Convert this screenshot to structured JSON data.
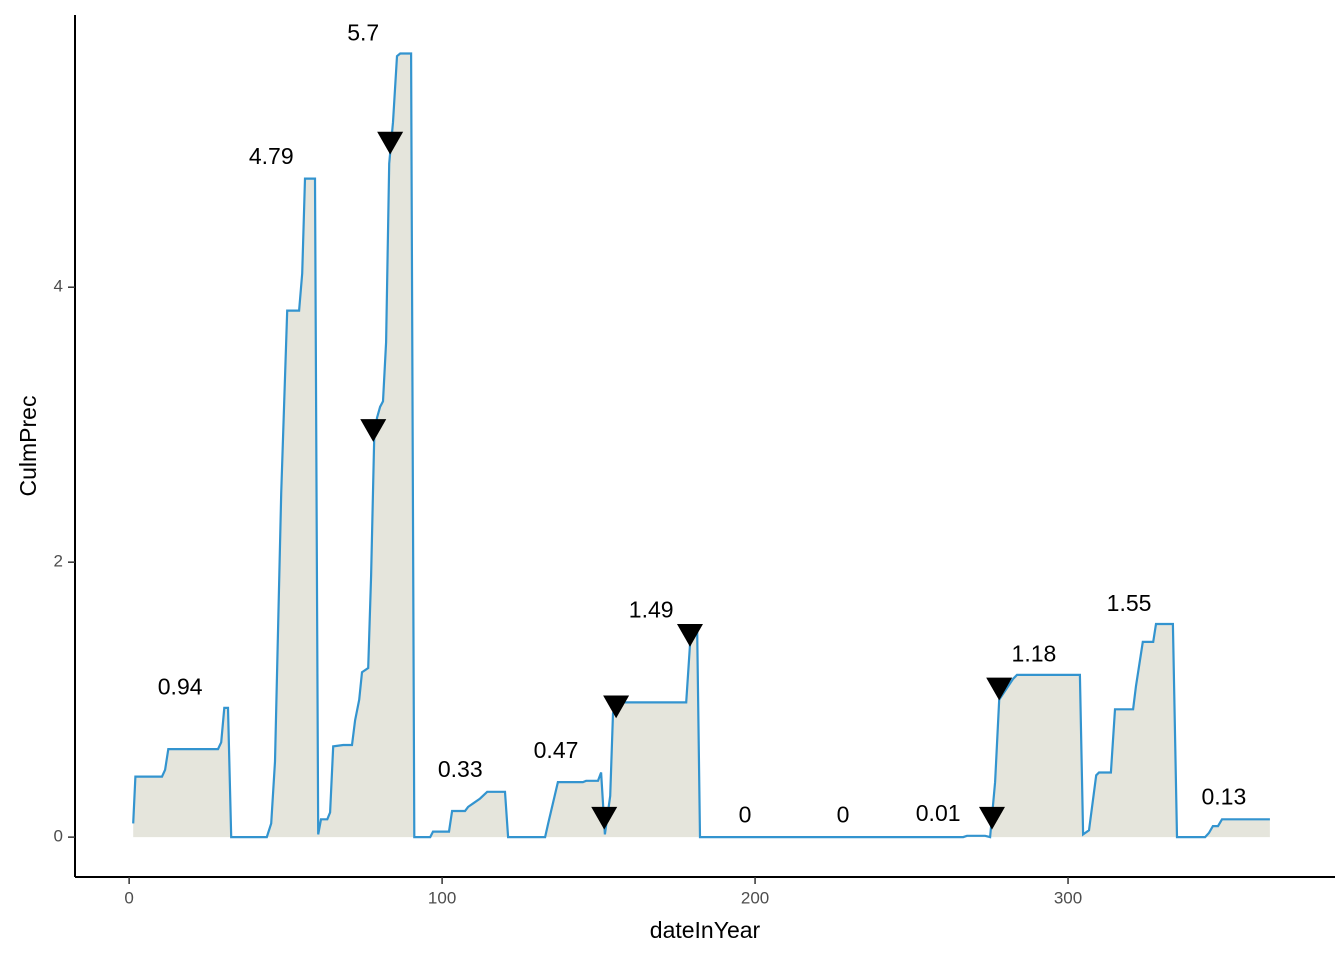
{
  "chart_data": {
    "type": "area-line",
    "xlabel": "dateInYear",
    "ylabel": "CulmPrec",
    "xlim": [
      -17.3,
      385.3
    ],
    "ylim": [
      -0.29,
      5.98
    ],
    "xticks": [
      0,
      100,
      200,
      300
    ],
    "yticks": [
      0,
      2,
      4
    ],
    "fill_color": "#e5e5dc",
    "series": [
      {
        "color": "#3394cf",
        "x": [
          1.3,
          2,
          10.5,
          11.5,
          12.5,
          28.4,
          29.4,
          30.4,
          31.6,
          32.6,
          44,
          45.4,
          46.6,
          48.6,
          50.5,
          54.3,
          55.3,
          56.2,
          59.4,
          60.4,
          61.3,
          63.3,
          64.2,
          65.2,
          68.4,
          71.2,
          72.2,
          73.5,
          74.4,
          76.4,
          77.3,
          78.3,
          79.2,
          80.2,
          81.1,
          82.1,
          83.1,
          84.3,
          85.6,
          86.6,
          90.1,
          91.1,
          96.2,
          97.1,
          102.2,
          103.2,
          107.3,
          108.3,
          110.2,
          112.1,
          114.4,
          120.1,
          121.1,
          132.9,
          133.9,
          137,
          145,
          146,
          149.8,
          150.8,
          152,
          153.7,
          154.6,
          155.9,
          178,
          179.2,
          180.2,
          181.5,
          182.4,
          266.5,
          267.7,
          273.5,
          275.1,
          276.7,
          278,
          282.4,
          283.7,
          303.8,
          304.8,
          306.7,
          309,
          309.9,
          313.7,
          315,
          320.8,
          321.7,
          323.9,
          327.2,
          328.1,
          333.5,
          334.8,
          343.8,
          345,
          346.3,
          347.9,
          349.2,
          364.5
        ],
        "values": [
          0.1,
          0.44,
          0.44,
          0.49,
          0.64,
          0.64,
          0.69,
          0.94,
          0.94,
          0,
          0,
          0.1,
          0.55,
          2.5,
          3.83,
          3.83,
          4.1,
          4.79,
          4.79,
          0.02,
          0.13,
          0.13,
          0.18,
          0.66,
          0.67,
          0.67,
          0.85,
          1.0,
          1.2,
          1.23,
          1.9,
          2.9,
          3.05,
          3.13,
          3.17,
          3.6,
          4.9,
          5.2,
          5.68,
          5.7,
          5.7,
          0,
          0,
          0.04,
          0.04,
          0.19,
          0.19,
          0.22,
          0.25,
          0.28,
          0.33,
          0.33,
          0,
          0,
          0.1,
          0.4,
          0.4,
          0.41,
          0.41,
          0.47,
          0.02,
          0.3,
          0.9,
          0.98,
          0.98,
          1.4,
          1.49,
          1.49,
          0,
          0,
          0.01,
          0.01,
          0,
          0.4,
          1.0,
          1.15,
          1.18,
          1.18,
          0.02,
          0.05,
          0.45,
          0.47,
          0.47,
          0.93,
          0.93,
          1.1,
          1.42,
          1.42,
          1.55,
          1.55,
          0,
          0,
          0.03,
          0.08,
          0.08,
          0.13,
          0.13
        ]
      }
    ],
    "markers": {
      "color": "#000000",
      "x": [
        78,
        83.4,
        151.8,
        155.6,
        179.2,
        275.7,
        278
      ],
      "values": [
        2.96,
        5.05,
        0.14,
        0.95,
        1.47,
        0.14,
        1.08
      ]
    },
    "annotations": [
      {
        "text": "0.94",
        "x": 16.3,
        "y": 1.08
      },
      {
        "text": "4.79",
        "x": 45.4,
        "y": 4.94
      },
      {
        "text": "5.7",
        "x": 74.8,
        "y": 5.84
      },
      {
        "text": "0.33",
        "x": 105.8,
        "y": 0.48
      },
      {
        "text": "0.47",
        "x": 136.4,
        "y": 0.62
      },
      {
        "text": "1.49",
        "x": 166.8,
        "y": 1.64
      },
      {
        "text": "0",
        "x": 196.8,
        "y": 0.15
      },
      {
        "text": "0",
        "x": 228.1,
        "y": 0.15
      },
      {
        "text": "0.01",
        "x": 258.5,
        "y": 0.16
      },
      {
        "text": "1.18",
        "x": 289.1,
        "y": 1.32
      },
      {
        "text": "1.55",
        "x": 319.5,
        "y": 1.69
      },
      {
        "text": "0.13",
        "x": 349.8,
        "y": 0.28
      }
    ]
  }
}
